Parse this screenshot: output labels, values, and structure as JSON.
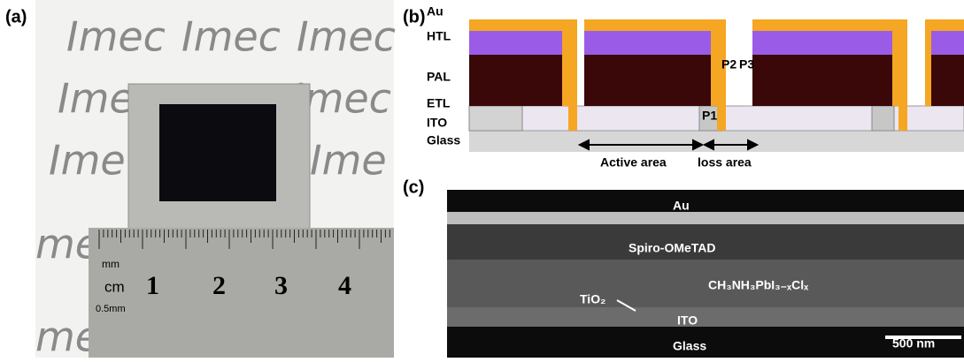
{
  "panels": {
    "a": {
      "label": "(a)",
      "background_text": [
        "Imec",
        "Imec",
        "Imec",
        "Imec",
        "Imec",
        "Ime",
        "Ime",
        "me",
        "me"
      ],
      "ruler": {
        "units": [
          "mm",
          "cm",
          "0.5mm"
        ],
        "numbers": [
          "1",
          "2",
          "3",
          "4"
        ]
      }
    },
    "b": {
      "label": "(b)",
      "layers": [
        "Au",
        "HTL",
        "PAL",
        "ETL",
        "ITO",
        "Glass"
      ],
      "scribes": [
        "P2",
        "P3",
        "P1"
      ],
      "regions": [
        "Active area",
        "loss area"
      ]
    },
    "c": {
      "label": "(c)",
      "layers": [
        "Au",
        "Spiro-OMeTAD",
        "CH₃NH₃PbI₃₋ₓClₓ",
        "TiO₂",
        "ITO",
        "Glass"
      ],
      "scale_bar": "500 nm"
    }
  }
}
